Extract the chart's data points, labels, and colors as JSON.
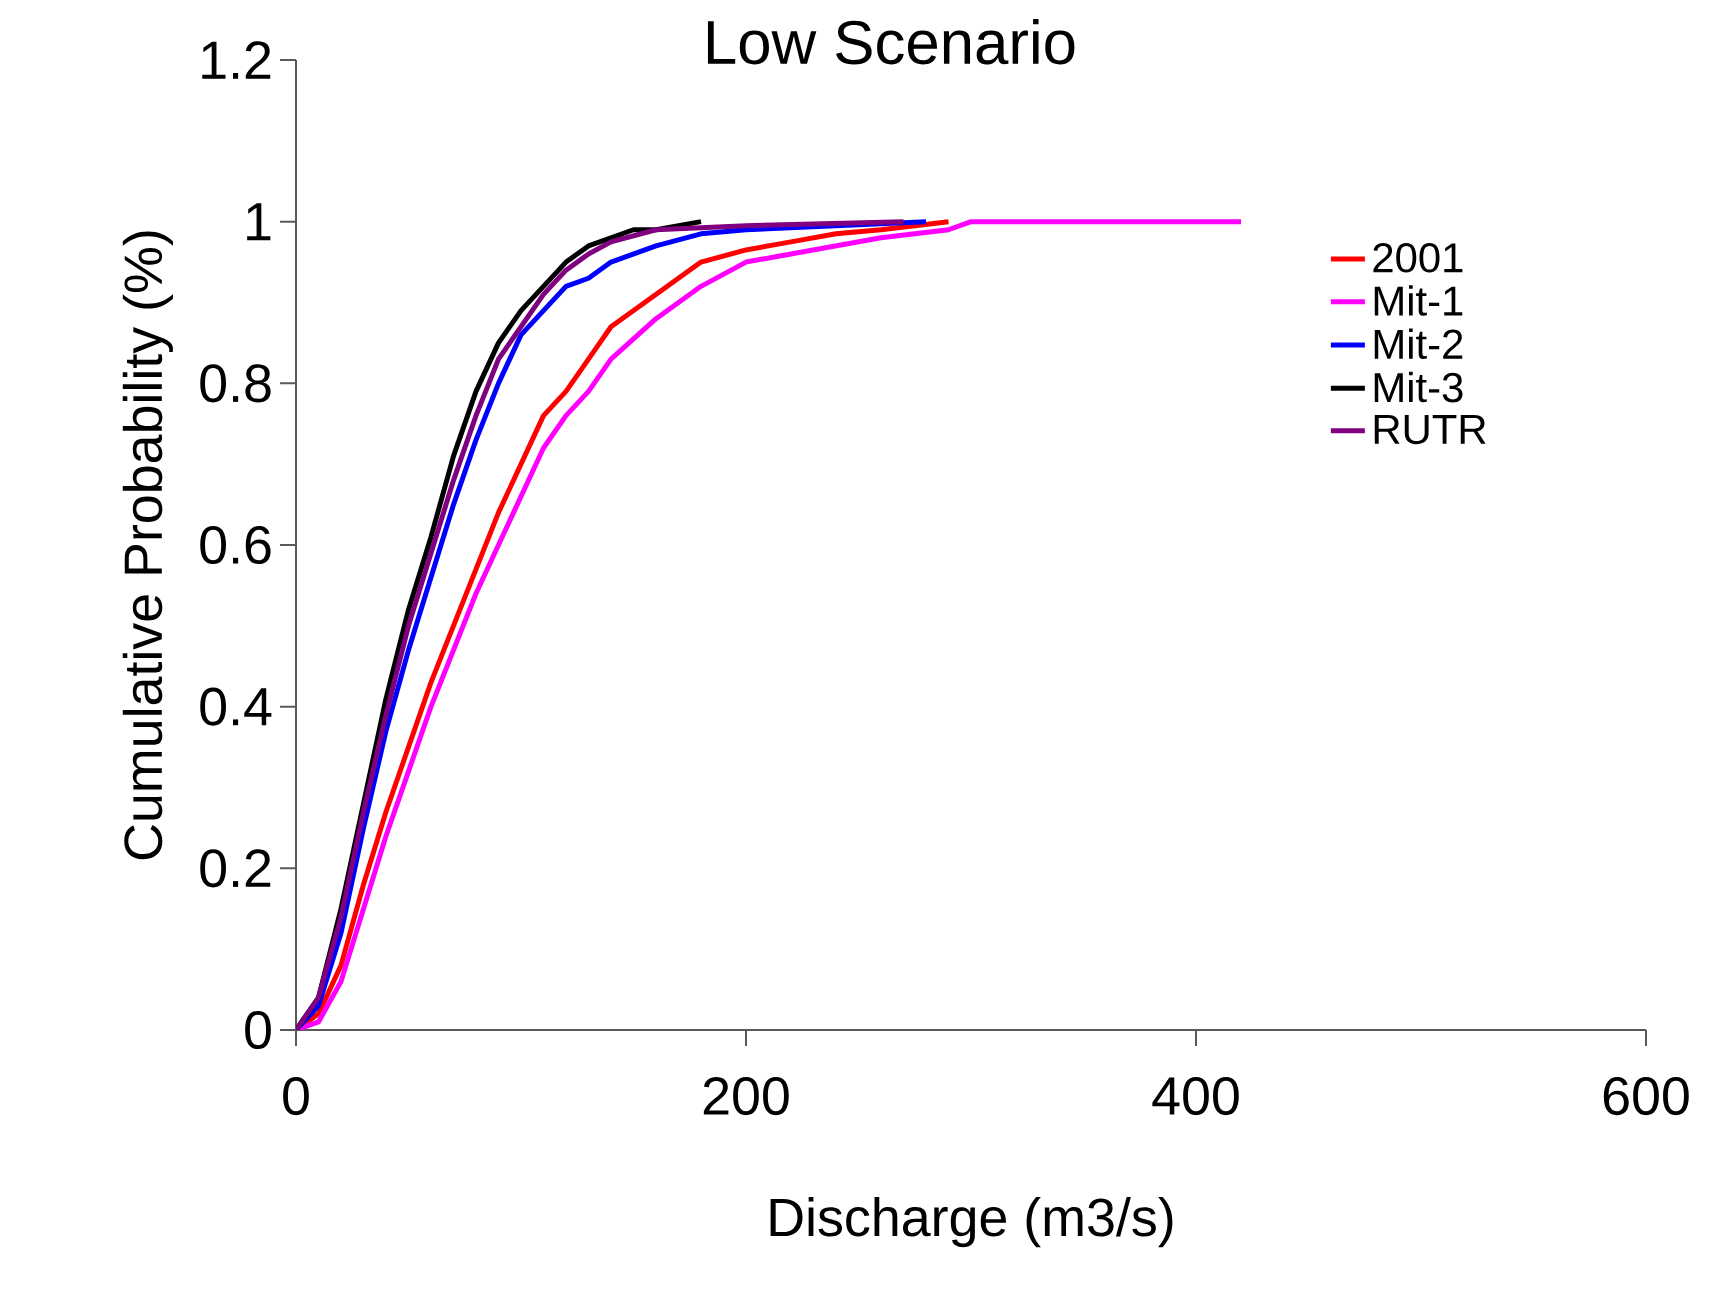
{
  "chart_data": {
    "type": "line",
    "title": "Low Scenario",
    "xlabel": "Discharge (m3/s)",
    "ylabel": "Cumulative Probability (%)",
    "xlim": [
      0,
      600
    ],
    "ylim": [
      0,
      1.2
    ],
    "xticks": [
      0,
      200,
      400,
      600
    ],
    "yticks": [
      0,
      0.2,
      0.4,
      0.6,
      0.8,
      1,
      1.2
    ],
    "grid": false,
    "legend": "right",
    "marker": "none",
    "line_style": "solid",
    "series": [
      {
        "name": "2001",
        "color": "#ff0000",
        "x": [
          0,
          10,
          20,
          30,
          40,
          50,
          60,
          70,
          80,
          90,
          100,
          110,
          120,
          130,
          140,
          160,
          180,
          200,
          220,
          240,
          260,
          290
        ],
        "values": [
          0,
          0.02,
          0.08,
          0.18,
          0.27,
          0.35,
          0.43,
          0.5,
          0.57,
          0.64,
          0.7,
          0.76,
          0.79,
          0.83,
          0.87,
          0.91,
          0.95,
          0.965,
          0.975,
          0.985,
          0.99,
          1
        ]
      },
      {
        "name": "Mit-1",
        "color": "#ff00ff",
        "x": [
          0,
          10,
          20,
          30,
          40,
          50,
          60,
          70,
          80,
          90,
          100,
          110,
          120,
          130,
          140,
          160,
          180,
          200,
          220,
          260,
          290,
          300,
          420
        ],
        "values": [
          0,
          0.01,
          0.06,
          0.15,
          0.24,
          0.32,
          0.4,
          0.47,
          0.54,
          0.6,
          0.66,
          0.72,
          0.76,
          0.79,
          0.83,
          0.88,
          0.92,
          0.95,
          0.96,
          0.98,
          0.99,
          1,
          1
        ]
      },
      {
        "name": "Mit-2",
        "color": "#0000ff",
        "x": [
          0,
          10,
          20,
          30,
          40,
          50,
          60,
          70,
          80,
          90,
          100,
          110,
          120,
          130,
          140,
          160,
          180,
          200,
          280
        ],
        "values": [
          0,
          0.03,
          0.12,
          0.25,
          0.37,
          0.47,
          0.56,
          0.65,
          0.73,
          0.8,
          0.86,
          0.89,
          0.92,
          0.93,
          0.95,
          0.97,
          0.985,
          0.99,
          1
        ]
      },
      {
        "name": "Mit-3",
        "color": "#000000",
        "x": [
          0,
          10,
          20,
          30,
          40,
          50,
          60,
          70,
          80,
          90,
          100,
          110,
          120,
          130,
          140,
          150,
          160,
          180
        ],
        "values": [
          0,
          0.04,
          0.15,
          0.28,
          0.41,
          0.52,
          0.61,
          0.71,
          0.79,
          0.85,
          0.89,
          0.92,
          0.95,
          0.97,
          0.98,
          0.99,
          0.99,
          1
        ]
      },
      {
        "name": "RUTR",
        "color": "#800080",
        "x": [
          0,
          10,
          20,
          30,
          40,
          50,
          60,
          70,
          80,
          90,
          100,
          110,
          120,
          130,
          140,
          160,
          200,
          270
        ],
        "values": [
          0,
          0.04,
          0.14,
          0.27,
          0.39,
          0.5,
          0.59,
          0.68,
          0.76,
          0.83,
          0.87,
          0.91,
          0.94,
          0.96,
          0.975,
          0.99,
          0.995,
          1
        ]
      }
    ]
  }
}
